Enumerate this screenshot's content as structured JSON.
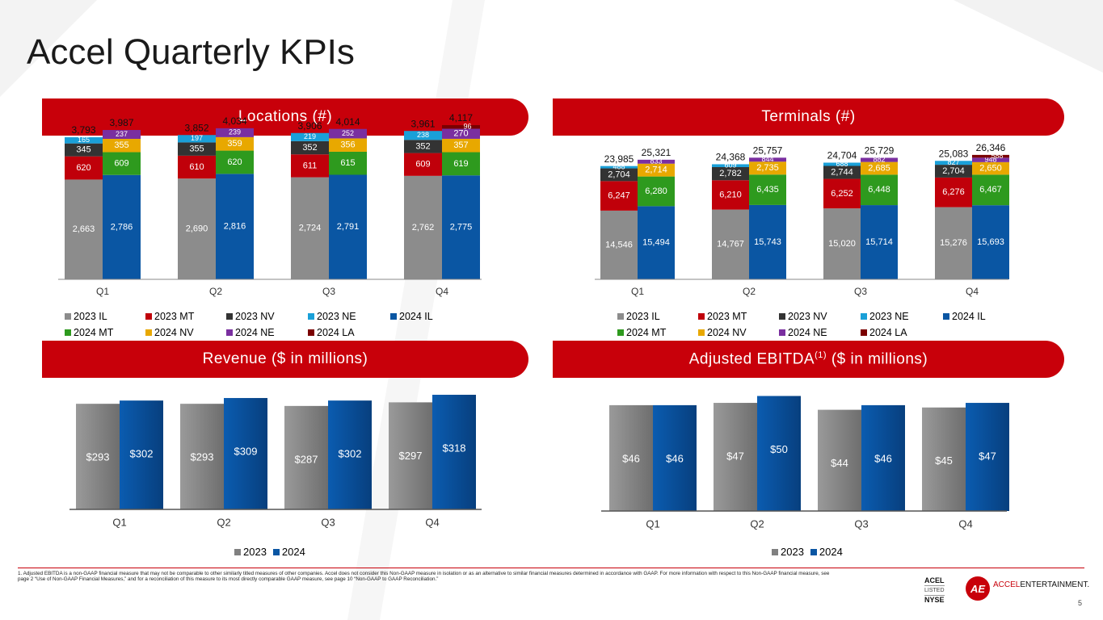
{
  "title": "Accel Quarterly KPIs",
  "banners": {
    "locations": "Locations (#)",
    "terminals": "Terminals (#)",
    "revenue": "Revenue ($ in millions)",
    "ebitda_pre": "Adjusted EBITDA",
    "ebitda_sup": "(1)",
    "ebitda_post": " ($ in millions)"
  },
  "colors": {
    "2023 IL": "#8c8c8c",
    "2023 MT": "#c0000a",
    "2023 NV": "#333333",
    "2023 NE": "#1aa0d8",
    "2024 IL": "#0a56a3",
    "2024 MT": "#2e9a1e",
    "2024 NV": "#e8a800",
    "2024 NE": "#7a2fa0",
    "2024 LA": "#7a0000",
    "brand_red": "#c8000a"
  },
  "chart_data": [
    {
      "id": "locations",
      "type": "bar",
      "stacked": true,
      "categories": [
        "Q1",
        "Q2",
        "Q3",
        "Q4"
      ],
      "groups": [
        {
          "name": "2023",
          "segments": [
            "2023 IL",
            "2023 MT",
            "2023 NV",
            "2023 NE"
          ],
          "values": [
            [
              2663,
              620,
              345,
              165
            ],
            [
              2690,
              610,
              355,
              197
            ],
            [
              2724,
              611,
              352,
              219
            ],
            [
              2762,
              609,
              352,
              238
            ]
          ],
          "totals": [
            "3,793",
            "3,852",
            "3,906",
            "3,961"
          ]
        },
        {
          "name": "2024",
          "segments": [
            "2024 IL",
            "2024 MT",
            "2024 NV",
            "2024 NE",
            "2024 LA"
          ],
          "values": [
            [
              2786,
              609,
              355,
              237,
              0
            ],
            [
              2816,
              620,
              359,
              239,
              0
            ],
            [
              2791,
              615,
              356,
              252,
              0
            ],
            [
              2775,
              619,
              357,
              270,
              96
            ]
          ],
          "totals": [
            "3,987",
            "4,034",
            "4,014",
            "4,117"
          ]
        }
      ],
      "legend": [
        "2023 IL",
        "2023 MT",
        "2023 NV",
        "2023 NE",
        "2024 IL",
        "2024 MT",
        "2024 NV",
        "2024 NE",
        "2024 LA"
      ]
    },
    {
      "id": "terminals",
      "type": "bar",
      "stacked": true,
      "categories": [
        "Q1",
        "Q2",
        "Q3",
        "Q4"
      ],
      "groups": [
        {
          "name": "2023",
          "segments": [
            "2023 IL",
            "2023 MT",
            "2023 NV",
            "2023 NE"
          ],
          "values": [
            [
              14546,
              6247,
              2704,
              488
            ],
            [
              14767,
              6210,
              2782,
              609
            ],
            [
              15020,
              6252,
              2744,
              688
            ],
            [
              15276,
              6276,
              2704,
              827
            ]
          ],
          "totals": [
            "23,985",
            "24,368",
            "24,704",
            "25,083"
          ]
        },
        {
          "name": "2024",
          "segments": [
            "2024 IL",
            "2024 MT",
            "2024 NV",
            "2024 NE",
            "2024 LA"
          ],
          "values": [
            [
              15494,
              6280,
              2714,
              833,
              0
            ],
            [
              15743,
              6435,
              2735,
              844,
              0
            ],
            [
              15714,
              6448,
              2685,
              882,
              0
            ],
            [
              15693,
              6467,
              2650,
              948,
              588
            ]
          ],
          "totals": [
            "25,321",
            "25,757",
            "25,729",
            "26,346"
          ]
        }
      ],
      "legend": [
        "2023 IL",
        "2023 MT",
        "2023 NV",
        "2023 NE",
        "2024 IL",
        "2024 MT",
        "2024 NV",
        "2024 NE",
        "2024 LA"
      ]
    },
    {
      "id": "revenue",
      "type": "bar",
      "categories": [
        "Q1",
        "Q2",
        "Q3",
        "Q4"
      ],
      "series": [
        {
          "name": "2023",
          "values": [
            293,
            293,
            287,
            297
          ],
          "labels": [
            "$293",
            "$293",
            "$287",
            "$297"
          ]
        },
        {
          "name": "2024",
          "values": [
            302,
            309,
            302,
            318
          ],
          "labels": [
            "$302",
            "$309",
            "$302",
            "$318"
          ]
        }
      ]
    },
    {
      "id": "ebitda",
      "type": "bar",
      "categories": [
        "Q1",
        "Q2",
        "Q3",
        "Q4"
      ],
      "series": [
        {
          "name": "2023",
          "values": [
            46,
            47,
            44,
            45
          ],
          "labels": [
            "$46",
            "$47",
            "$44",
            "$45"
          ]
        },
        {
          "name": "2024",
          "values": [
            46,
            50,
            46,
            47
          ],
          "labels": [
            "$46",
            "$50",
            "$46",
            "$47"
          ]
        }
      ]
    }
  ],
  "footnote": "1.  Adjusted EBITDA is a non-GAAP financial measure that may not be comparable to other similarly titled measures of other companies. Accel does not consider this Non-GAAP measure in isolation or as an alternative to similar financial measures determined in accordance with GAAP.   For more information with respect to this Non-GAAP financial measure, see page 2 “Use of Non-GAAP Financial Measures,” and for a reconciliation of this measure to its most directly comparable GAAP measure, see page 10 “Non-GAAP to GAAP Reconciliation.”",
  "footer": {
    "ticker": "ACEL",
    "listed": "LISTED",
    "exchange": "NYSE",
    "logo_mark": "AE",
    "brand_red": "ACCEL",
    "brand_black": "ENTERTAINMENT.",
    "page": "5"
  }
}
